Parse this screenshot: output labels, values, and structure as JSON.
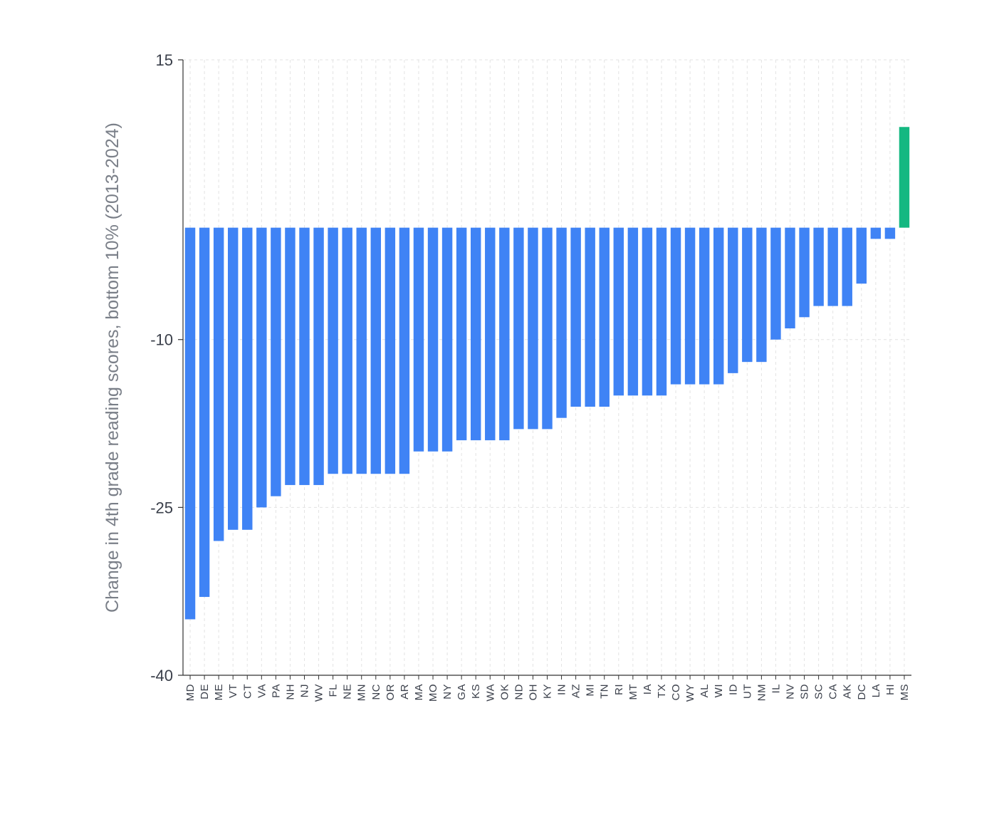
{
  "chart_data": {
    "type": "bar",
    "title": "",
    "xlabel": "",
    "ylabel": "Change in 4th grade reading scores, bottom 10% (2013-2024)",
    "ylim": [
      -40,
      15
    ],
    "yticks": [
      "15",
      "-10",
      "-25",
      "-40"
    ],
    "ytick_values": [
      15,
      -10,
      -25,
      -40
    ],
    "grid": true,
    "colors": {
      "negative": "#3f83f5",
      "positive": "#14b881"
    },
    "categories": [
      "MD",
      "DE",
      "ME",
      "VT",
      "CT",
      "VA",
      "PA",
      "NH",
      "NJ",
      "WV",
      "FL",
      "NE",
      "MN",
      "NC",
      "OR",
      "AR",
      "MA",
      "MO",
      "NY",
      "GA",
      "KS",
      "WA",
      "OK",
      "ND",
      "OH",
      "KY",
      "IN",
      "AZ",
      "MI",
      "TN",
      "RI",
      "MT",
      "IA",
      "TX",
      "CO",
      "WY",
      "AL",
      "WI",
      "ID",
      "UT",
      "NM",
      "IL",
      "NV",
      "SD",
      "SC",
      "CA",
      "AK",
      "DC",
      "LA",
      "HI",
      "MS"
    ],
    "values": [
      -35,
      -33,
      -28,
      -27,
      -27,
      -25,
      -24,
      -23,
      -23,
      -23,
      -22,
      -22,
      -22,
      -22,
      -22,
      -22,
      -20,
      -20,
      -20,
      -19,
      -19,
      -19,
      -19,
      -18,
      -18,
      -18,
      -17,
      -16,
      -16,
      -16,
      -15,
      -15,
      -15,
      -15,
      -14,
      -14,
      -14,
      -14,
      -13,
      -12,
      -12,
      -10,
      -9,
      -8,
      -7,
      -7,
      -7,
      -5,
      -1,
      -1,
      9
    ]
  }
}
